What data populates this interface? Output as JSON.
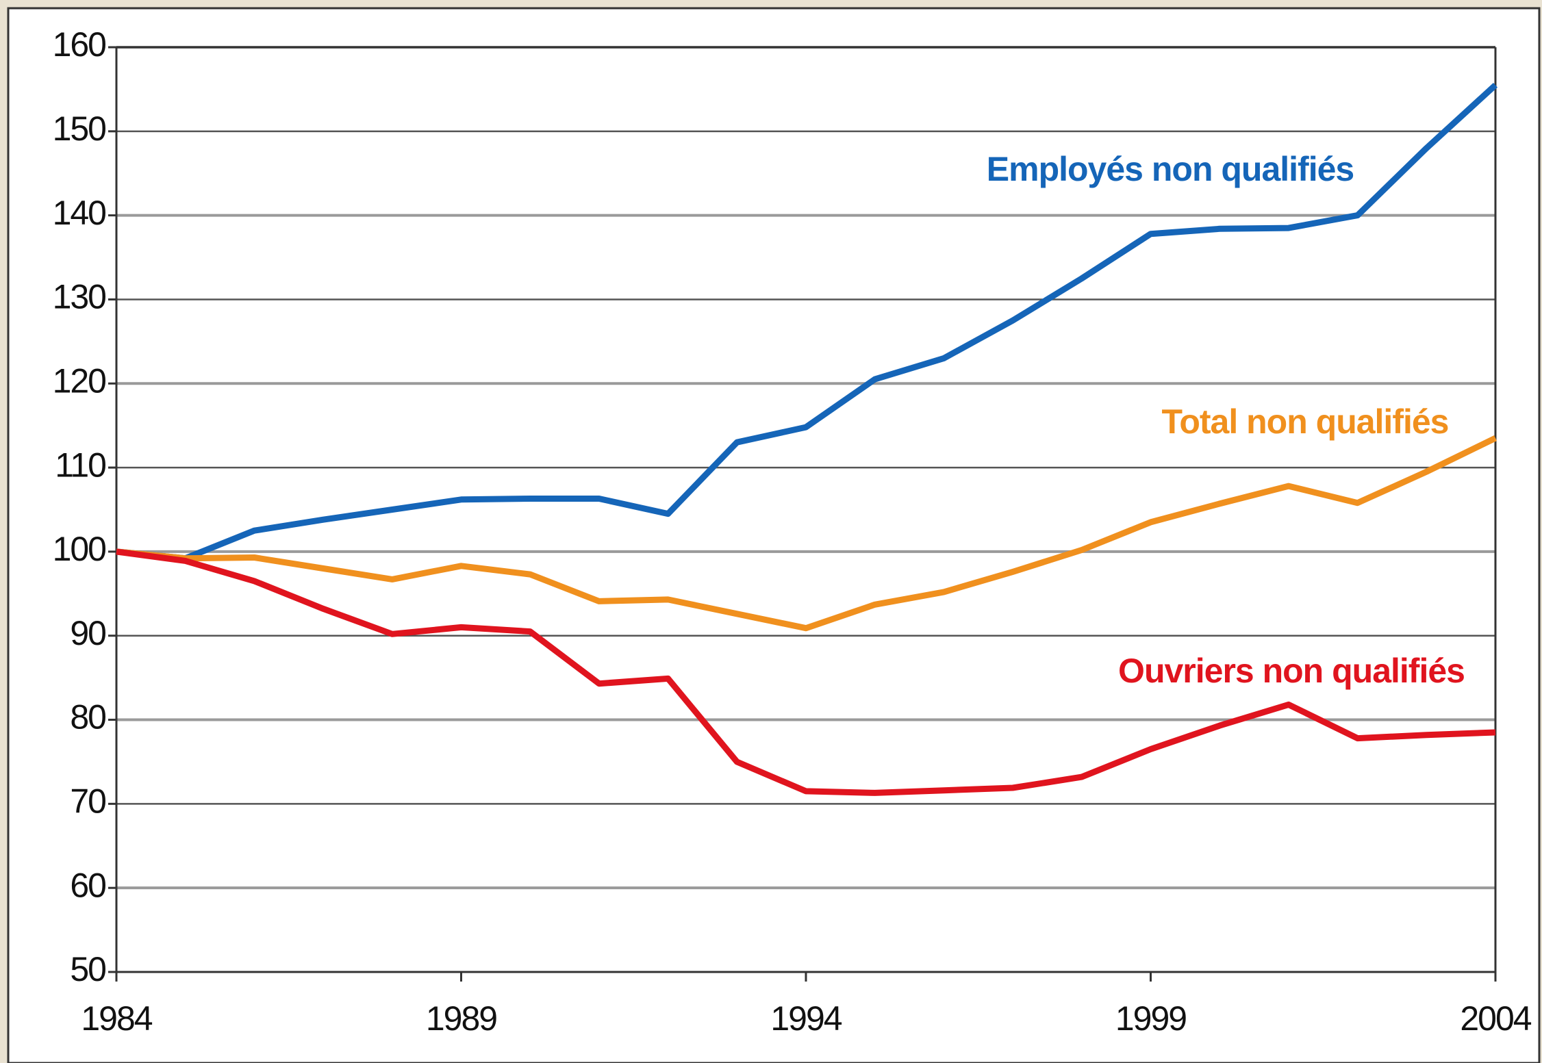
{
  "chart_data": {
    "type": "line",
    "x": [
      1984,
      1985,
      1986,
      1987,
      1988,
      1989,
      1990,
      1991,
      1992,
      1993,
      1994,
      1995,
      1996,
      1997,
      1998,
      1999,
      2000,
      2001,
      2002,
      2003,
      2004
    ],
    "series": [
      {
        "name": "Employés non qualifiés",
        "color": "#1565b8",
        "values": [
          100,
          99.2,
          102.5,
          103.8,
          105,
          106.2,
          106.3,
          106.3,
          104.5,
          113,
          114.8,
          120.5,
          123,
          127.5,
          132.5,
          137.8,
          138.4,
          138.5,
          140,
          148,
          155.5
        ]
      },
      {
        "name": "Total non qualifiés",
        "color": "#f0901e",
        "values": [
          100,
          99.2,
          99.3,
          98,
          96.7,
          98.3,
          97.3,
          94.1,
          94.3,
          92.6,
          90.9,
          93.7,
          95.2,
          97.6,
          100.2,
          103.5,
          105.7,
          107.8,
          105.8,
          109.5,
          113.5
        ]
      },
      {
        "name": "Ouvriers non qualifiés",
        "color": "#e0141e",
        "values": [
          100,
          98.9,
          96.5,
          93.2,
          90.2,
          91,
          90.5,
          84.3,
          84.9,
          75,
          71.5,
          71.3,
          71.6,
          71.9,
          73.2,
          76.5,
          79.3,
          81.8,
          77.8,
          78.2,
          78.5
        ]
      }
    ],
    "xlim": [
      1984,
      2004
    ],
    "xticks": [
      1984,
      1989,
      1994,
      1999,
      2004
    ],
    "ylim": [
      50,
      160
    ],
    "yticks": [
      50,
      60,
      70,
      80,
      90,
      100,
      110,
      120,
      130,
      140,
      150,
      160
    ],
    "grid": true
  }
}
